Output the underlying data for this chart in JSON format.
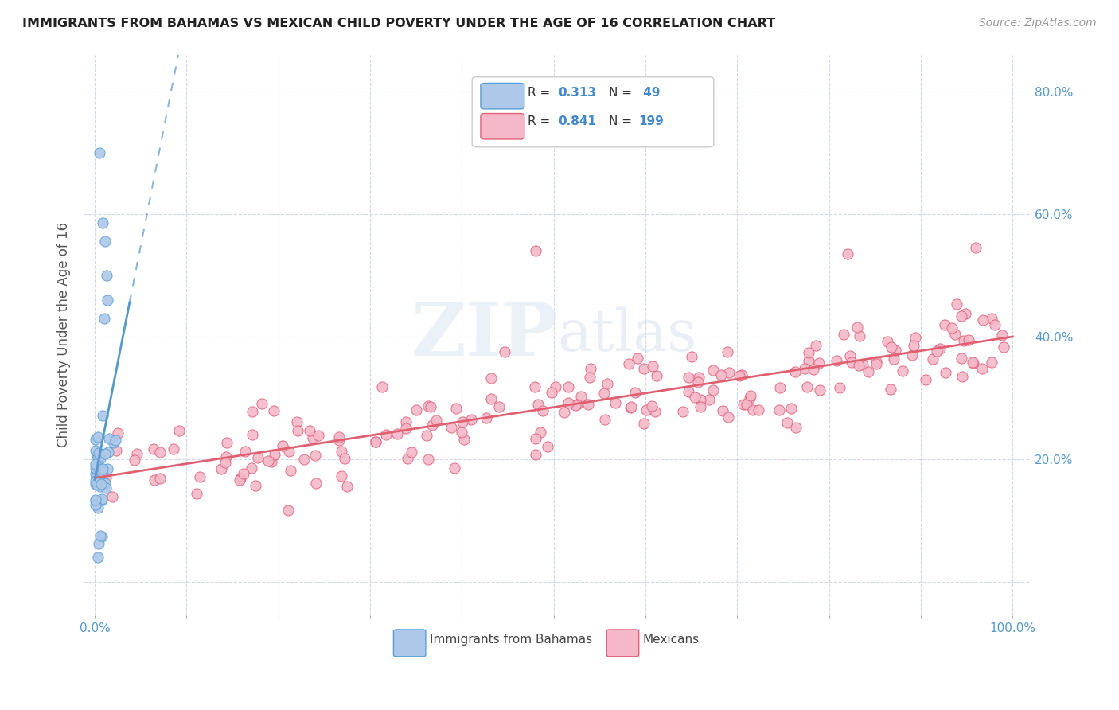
{
  "title": "IMMIGRANTS FROM BAHAMAS VS MEXICAN CHILD POVERTY UNDER THE AGE OF 16 CORRELATION CHART",
  "source": "Source: ZipAtlas.com",
  "ylabel": "Child Poverty Under the Age of 16",
  "bahamas_color": "#adc8e8",
  "bahamas_edge_color": "#5a9fd4",
  "mexican_color": "#f5b8c8",
  "mexican_edge_color": "#e0607a",
  "bahamas_line_color": "#5599cc",
  "mexican_line_color": "#e06070",
  "watermark_zip_color": "#d8e4f0",
  "watermark_atlas_color": "#c8d8ec",
  "background_color": "#ffffff",
  "grid_color": "#d0d8e8",
  "title_color": "#222222",
  "source_color": "#999999",
  "axis_label_color": "#555555",
  "tick_color": "#5599cc",
  "legend_text_color": "#333333",
  "legend_value_color": "#4488cc"
}
